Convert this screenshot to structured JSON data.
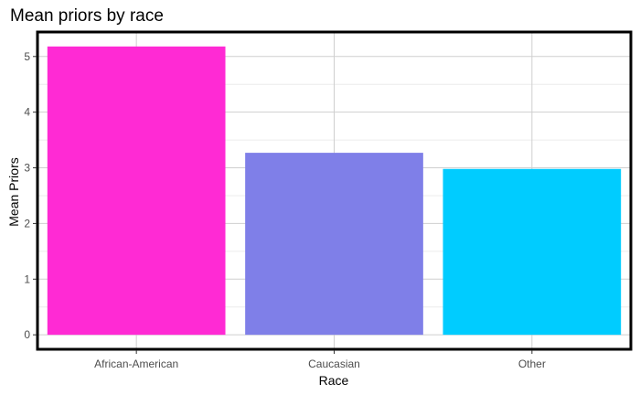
{
  "chart_data": {
    "type": "bar",
    "title": "Mean priors by race",
    "xlabel": "Race",
    "ylabel": "Mean Priors",
    "categories": [
      "African-American",
      "Caucasian",
      "Other"
    ],
    "values": [
      5.18,
      3.27,
      2.98
    ],
    "colors": [
      "#ff2ad4",
      "#7f7fe8",
      "#00ccff"
    ],
    "yticks": [
      0,
      1,
      2,
      3,
      4,
      5
    ],
    "ylim": [
      -0.26,
      5.44
    ],
    "grid": true,
    "legend": "none"
  }
}
